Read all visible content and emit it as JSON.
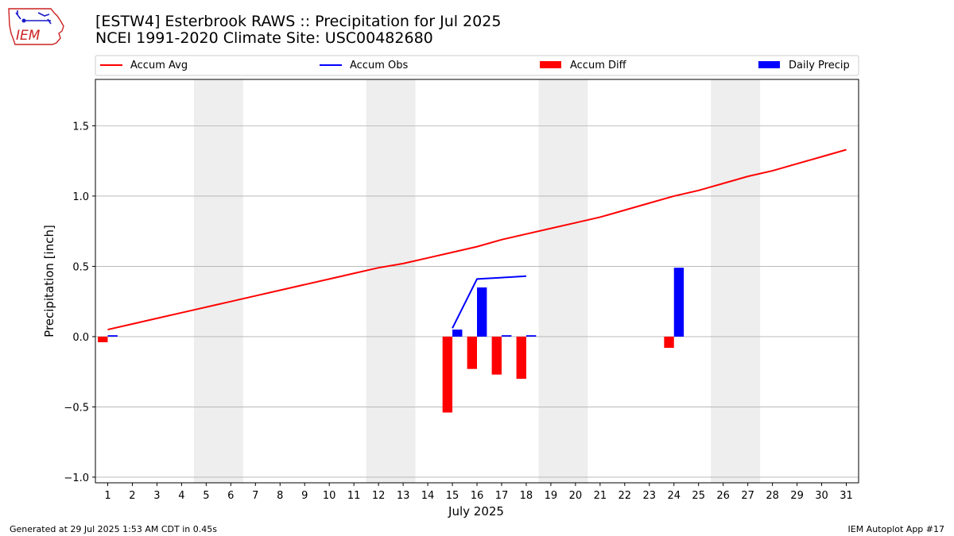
{
  "logo": {
    "text": "IEM"
  },
  "header": {
    "title": "[ESTW4] Esterbrook RAWS :: Precipitation for Jul 2025",
    "subtitle": "NCEI 1991-2020 Climate Site: USC00482680"
  },
  "footer": {
    "generated": "Generated at 29 Jul 2025 1:53 AM CDT in 0.45s",
    "app": "IEM Autoplot App #17"
  },
  "colors": {
    "accum_avg": "#ff0000",
    "accum_obs": "#0000ff",
    "accum_diff": "#ff0000",
    "daily_precip": "#0000ff",
    "weekend_shade": "#eeeeee",
    "grid": "#b0b0b0",
    "logo_red": "#cc2222"
  },
  "chart_data": {
    "type": "bar",
    "xlabel": "July 2025",
    "ylabel": "Precipitation [inch]",
    "xlim": [
      0.5,
      31.5
    ],
    "ylim": [
      -1.04,
      1.83
    ],
    "grid": true,
    "legend_position": "top",
    "x_ticks": [
      1,
      2,
      3,
      4,
      5,
      6,
      7,
      8,
      9,
      10,
      11,
      12,
      13,
      14,
      15,
      16,
      17,
      18,
      19,
      20,
      21,
      22,
      23,
      24,
      25,
      26,
      27,
      28,
      29,
      30,
      31
    ],
    "y_ticks": [
      -1.0,
      -0.5,
      0.0,
      0.5,
      1.0,
      1.5
    ],
    "y_tick_labels": [
      "−1.0",
      "−0.5",
      "0.0",
      "0.5",
      "1.0",
      "1.5"
    ],
    "shaded_days": [
      [
        5,
        6
      ],
      [
        12,
        13
      ],
      [
        19,
        20
      ],
      [
        26,
        27
      ]
    ],
    "legend": [
      "Accum Avg",
      "Accum Obs",
      "Accum Diff",
      "Daily Precip"
    ],
    "series": [
      {
        "name": "Accum Avg",
        "kind": "line",
        "x": [
          1,
          2,
          3,
          4,
          5,
          6,
          7,
          8,
          9,
          10,
          11,
          12,
          13,
          14,
          15,
          16,
          17,
          18,
          19,
          20,
          21,
          22,
          23,
          24,
          25,
          26,
          27,
          28,
          29,
          30,
          31
        ],
        "values": [
          0.05,
          0.09,
          0.13,
          0.17,
          0.21,
          0.25,
          0.29,
          0.33,
          0.37,
          0.41,
          0.45,
          0.49,
          0.52,
          0.56,
          0.6,
          0.64,
          0.69,
          0.73,
          0.77,
          0.81,
          0.85,
          0.9,
          0.95,
          1.0,
          1.04,
          1.09,
          1.14,
          1.18,
          1.23,
          1.28,
          1.33
        ]
      },
      {
        "name": "Accum Obs",
        "kind": "line",
        "x": [
          15,
          16,
          17,
          18
        ],
        "values": [
          0.06,
          0.41,
          0.42,
          0.43
        ]
      },
      {
        "name": "Accum Diff",
        "kind": "bar",
        "x": [
          1,
          15,
          16,
          17,
          18,
          24
        ],
        "values": [
          -0.04,
          -0.54,
          -0.23,
          -0.27,
          -0.3,
          -0.08
        ]
      },
      {
        "name": "Daily Precip",
        "kind": "bar",
        "x": [
          1,
          15,
          16,
          17,
          18,
          24
        ],
        "values": [
          0.01,
          0.05,
          0.35,
          0.01,
          0.01,
          0.49
        ]
      }
    ]
  }
}
